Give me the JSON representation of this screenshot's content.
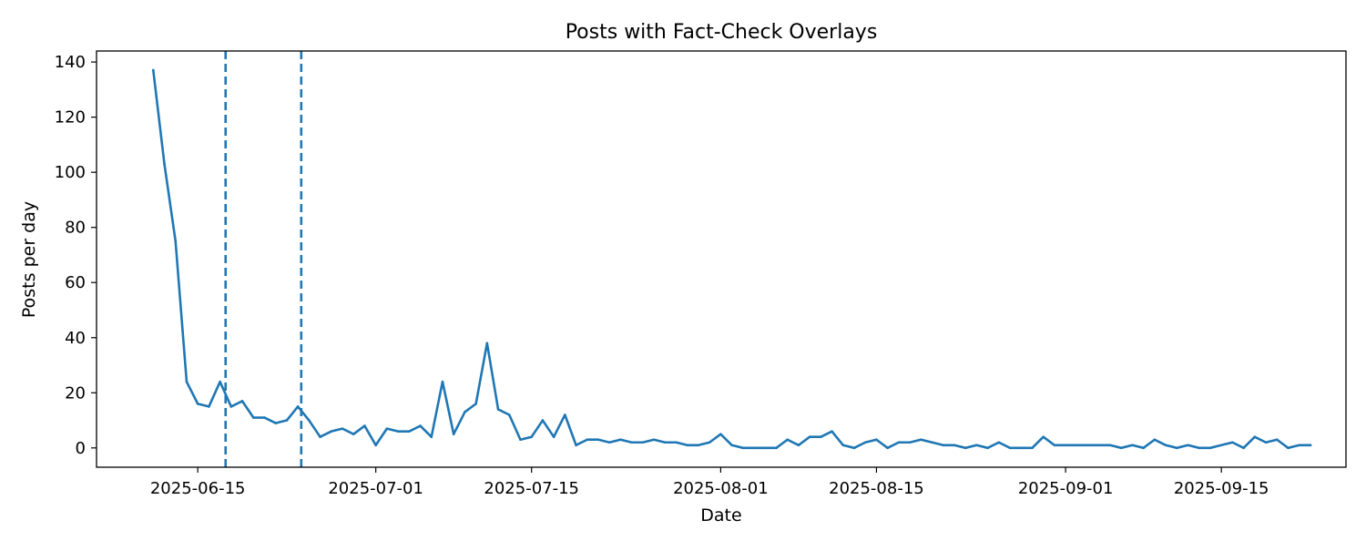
{
  "chart_data": {
    "type": "line",
    "title": "Posts with Fact-Check Overlays",
    "xlabel": "Date",
    "ylabel": "Posts per day",
    "x_start": "2025-06-11",
    "x_lim_days": [
      -5.1,
      107.2
    ],
    "ylim": [
      -7,
      144
    ],
    "grid": false,
    "legend": "none",
    "x_ticks": [
      {
        "day": 4,
        "label": "2025-06-15"
      },
      {
        "day": 20,
        "label": "2025-07-01"
      },
      {
        "day": 34,
        "label": "2025-07-15"
      },
      {
        "day": 51,
        "label": "2025-08-01"
      },
      {
        "day": 65,
        "label": "2025-08-15"
      },
      {
        "day": 82,
        "label": "2025-09-01"
      },
      {
        "day": 96,
        "label": "2025-09-15"
      }
    ],
    "y_ticks": [
      {
        "value": 0,
        "label": "0"
      },
      {
        "value": 20,
        "label": "20"
      },
      {
        "value": 40,
        "label": "40"
      },
      {
        "value": 60,
        "label": "60"
      },
      {
        "value": 80,
        "label": "80"
      },
      {
        "value": 100,
        "label": "100"
      },
      {
        "value": 120,
        "label": "120"
      },
      {
        "value": 140,
        "label": "140"
      }
    ],
    "reference_lines": [
      {
        "day": 6.5,
        "style": "dashed",
        "color": "#1f77b4"
      },
      {
        "day": 13.3,
        "style": "dashed",
        "color": "#1f77b4"
      }
    ],
    "series": [
      {
        "name": "Posts per day",
        "color": "#1f77b4",
        "values": [
          137,
          103,
          75,
          24,
          16,
          15,
          24,
          15,
          17,
          11,
          11,
          9,
          10,
          15,
          10,
          4,
          6,
          7,
          5,
          8,
          1,
          7,
          6,
          6,
          8,
          4,
          24,
          5,
          13,
          16,
          38,
          14,
          12,
          3,
          4,
          10,
          4,
          12,
          1,
          3,
          3,
          2,
          3,
          2,
          2,
          3,
          2,
          2,
          1,
          1,
          2,
          5,
          1,
          0,
          0,
          0,
          0,
          3,
          1,
          4,
          4,
          6,
          1,
          0,
          2,
          3,
          0,
          2,
          2,
          3,
          2,
          1,
          1,
          0,
          1,
          0,
          2,
          0,
          0,
          0,
          4,
          1,
          1,
          1,
          1,
          1,
          1,
          0,
          1,
          0,
          3,
          1,
          0,
          1,
          0,
          0,
          1,
          2,
          0,
          4,
          2,
          3,
          0,
          1,
          1
        ]
      }
    ]
  }
}
